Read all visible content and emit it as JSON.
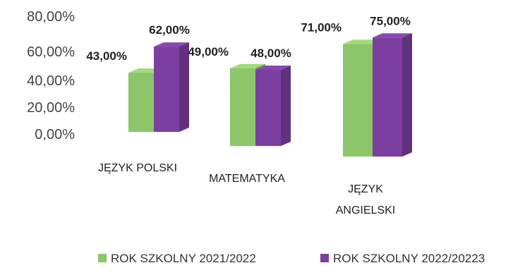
{
  "chart_data": {
    "type": "bar",
    "categories": [
      "JĘZYK POLSKI",
      "MATEMATYKA",
      "JĘZYK ANGIELSKI"
    ],
    "series": [
      {
        "name": "ROK SZKOLNY 2021/2022",
        "values": [
          43,
          49,
          71
        ],
        "labels": [
          "43,00%",
          "49,00%",
          "71,00%"
        ],
        "color": "#8cc56a"
      },
      {
        "name": "ROK SZKOLNY 2022/20223",
        "values": [
          62,
          48,
          75
        ],
        "labels": [
          "62,00%",
          "48,00%",
          "75,00%"
        ],
        "color": "#7b3fa0"
      }
    ],
    "yticks": [
      "80,00%",
      "60,00%",
      "40,00%",
      "20,00%",
      "0,00%"
    ],
    "ylim": [
      0,
      80
    ],
    "legend_position": "bottom",
    "grid": false
  }
}
